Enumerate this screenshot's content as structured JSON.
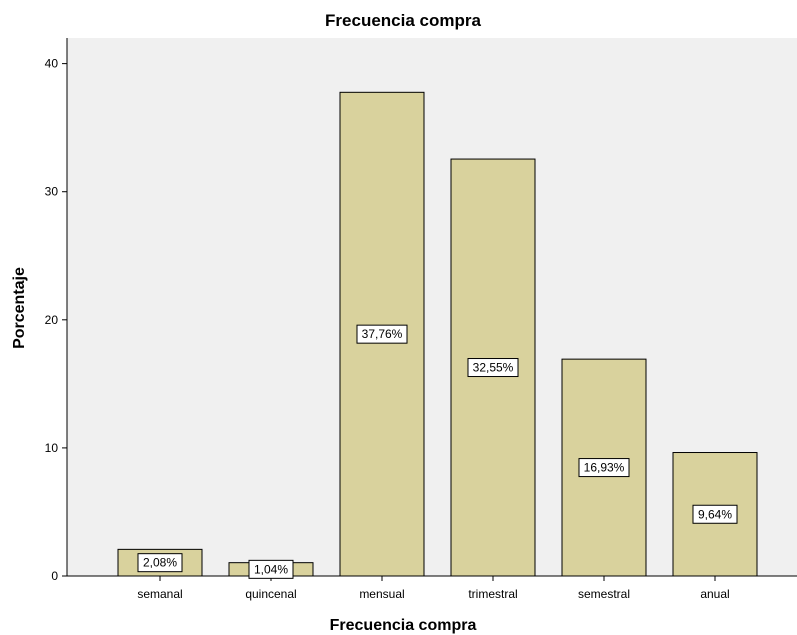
{
  "chart_data": {
    "type": "bar",
    "title": "Frecuencia compra",
    "xlabel": "Frecuencia compra",
    "ylabel": "Porcentaje",
    "categories": [
      "semanal",
      "quincenal",
      "mensual",
      "trimestral",
      "semestral",
      "anual"
    ],
    "values": [
      2.08,
      1.04,
      37.76,
      32.55,
      16.93,
      9.64
    ],
    "data_labels": [
      "2,08%",
      "1,04%",
      "37,76%",
      "32,55%",
      "16,93%",
      "9,64%"
    ],
    "yticks": [
      0,
      10,
      20,
      30,
      40
    ],
    "ylim": [
      0,
      42
    ],
    "grid": false,
    "legend": "none",
    "colors": {
      "plot_background": "#f0f0f0",
      "bar_fill": "#d9d29d",
      "bar_stroke": "#000000",
      "label_box": "#ffffff"
    }
  }
}
